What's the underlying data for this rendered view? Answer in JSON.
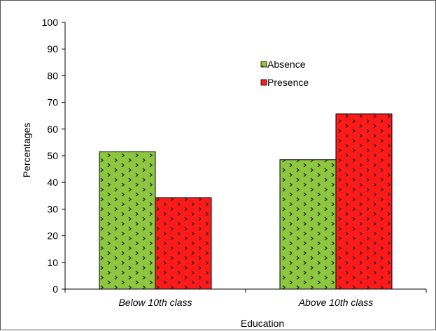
{
  "chart_data": {
    "type": "bar",
    "categories": [
      "Below 10th class",
      "Above 10th class"
    ],
    "series": [
      {
        "name": "Absence",
        "values": [
          51.5,
          48.5
        ],
        "color": "#8dc63f"
      },
      {
        "name": "Presence",
        "values": [
          34.3,
          65.7
        ],
        "color": "#ff1a1a"
      }
    ],
    "xlabel": "Education",
    "ylabel": "Percentages",
    "ylim": [
      0,
      100
    ],
    "yticks": [
      0,
      10,
      20,
      30,
      40,
      50,
      60,
      70,
      80,
      90,
      100
    ],
    "grid": false,
    "legend_position": "top-right",
    "bar_pattern": "dotted-diamond"
  }
}
